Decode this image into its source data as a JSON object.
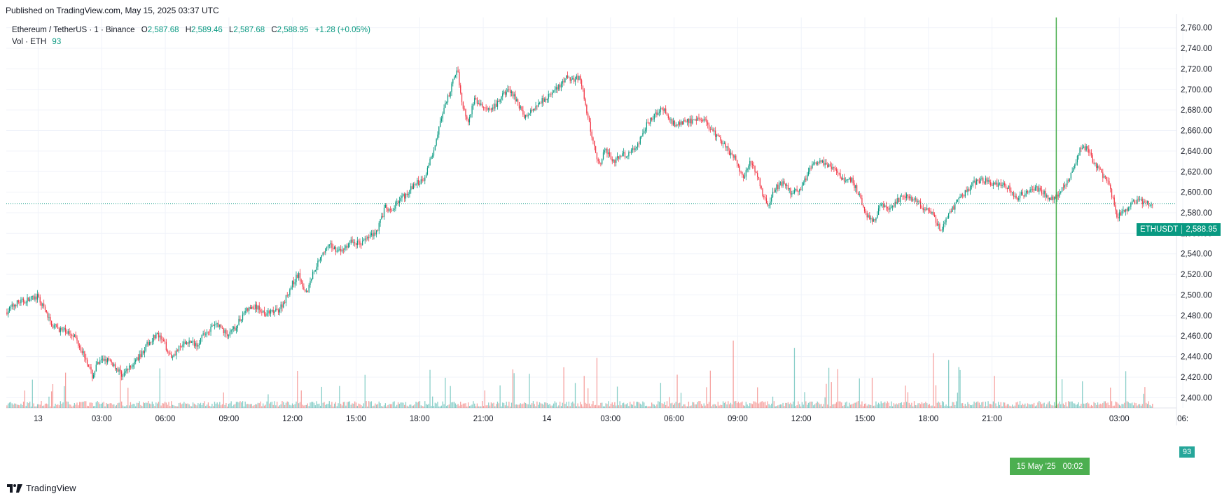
{
  "header": {
    "published": "Published on TradingView.com, May 15, 2025 03:37 UTC"
  },
  "legend": {
    "symbol": "Ethereum / TetherUS · 1 · Binance",
    "open_label": "O",
    "open": "2,587.68",
    "high_label": "H",
    "high": "2,589.46",
    "low_label": "L",
    "low": "2,587.68",
    "close_label": "C",
    "close": "2,588.95",
    "change": "+1.28 (+0.05%)",
    "volume_label": "Vol · ETH",
    "volume": "93"
  },
  "price_tag": {
    "symbol": "ETHUSDT",
    "price": "2,588.95"
  },
  "volume_tag": "93",
  "crosshair_tag": {
    "date": "15 May '25",
    "time": "00:02"
  },
  "footer": {
    "brand": "TradingView"
  },
  "colors": {
    "up": "#089981",
    "down": "#f23645",
    "vol_up": "#26a69a",
    "vol_down": "#ef5350",
    "crosshair": "#4caf50"
  },
  "chart_data": {
    "type": "candlestick",
    "symbol": "ETHUSDT",
    "ylim": [
      2390,
      2770
    ],
    "y_ticks": [
      "2,400.00",
      "2,420.00",
      "2,440.00",
      "2,460.00",
      "2,480.00",
      "2,500.00",
      "2,520.00",
      "2,540.00",
      "2,560.00",
      "2,580.00",
      "2,600.00",
      "2,620.00",
      "2,640.00",
      "2,660.00",
      "2,680.00",
      "2,700.00",
      "2,720.00",
      "2,740.00",
      "2,760.00"
    ],
    "y_tick_values": [
      2400,
      2420,
      2440,
      2460,
      2480,
      2500,
      2520,
      2540,
      2560,
      2580,
      2600,
      2620,
      2640,
      2660,
      2680,
      2700,
      2720,
      2740,
      2760
    ],
    "x_ticks": [
      "13",
      "03:00",
      "06:00",
      "09:00",
      "12:00",
      "15:00",
      "18:00",
      "21:00",
      "14",
      "03:00",
      "06:00",
      "09:00",
      "12:00",
      "15:00",
      "18:00",
      "21:00",
      "03:00",
      "06:"
    ],
    "x_tick_hours": [
      0,
      3,
      6,
      9,
      12,
      15,
      18,
      21,
      24,
      27,
      30,
      33,
      36,
      39,
      42,
      45,
      51,
      54
    ],
    "xlim_hours": [
      -1.5,
      53.7
    ],
    "crosshair_hour": 48.03,
    "last_price": 2588.95,
    "price_path": [
      [
        -1.5,
        2483
      ],
      [
        -1.0,
        2492
      ],
      [
        -0.5,
        2495
      ],
      [
        0,
        2498
      ],
      [
        0.3,
        2487
      ],
      [
        0.7,
        2470
      ],
      [
        1.2,
        2465
      ],
      [
        1.7,
        2462
      ],
      [
        2.0,
        2450
      ],
      [
        2.3,
        2438
      ],
      [
        2.6,
        2420
      ],
      [
        2.8,
        2432
      ],
      [
        3.2,
        2438
      ],
      [
        3.6,
        2432
      ],
      [
        4.0,
        2422
      ],
      [
        4.4,
        2430
      ],
      [
        4.8,
        2440
      ],
      [
        5.2,
        2452
      ],
      [
        5.6,
        2462
      ],
      [
        6.0,
        2452
      ],
      [
        6.3,
        2440
      ],
      [
        6.7,
        2448
      ],
      [
        7.1,
        2455
      ],
      [
        7.5,
        2452
      ],
      [
        8.0,
        2465
      ],
      [
        8.5,
        2472
      ],
      [
        9.0,
        2460
      ],
      [
        9.4,
        2470
      ],
      [
        9.8,
        2485
      ],
      [
        10.3,
        2488
      ],
      [
        10.8,
        2482
      ],
      [
        11.3,
        2484
      ],
      [
        11.6,
        2492
      ],
      [
        12.0,
        2510
      ],
      [
        12.3,
        2520
      ],
      [
        12.7,
        2502
      ],
      [
        13.0,
        2522
      ],
      [
        13.4,
        2540
      ],
      [
        13.8,
        2548
      ],
      [
        14.3,
        2542
      ],
      [
        14.8,
        2552
      ],
      [
        15.2,
        2550
      ],
      [
        15.6,
        2556
      ],
      [
        16.0,
        2562
      ],
      [
        16.4,
        2585
      ],
      [
        16.7,
        2580
      ],
      [
        17.0,
        2592
      ],
      [
        17.4,
        2598
      ],
      [
        17.8,
        2608
      ],
      [
        18.2,
        2612
      ],
      [
        18.6,
        2635
      ],
      [
        18.9,
        2660
      ],
      [
        19.2,
        2682
      ],
      [
        19.5,
        2700
      ],
      [
        19.8,
        2722
      ],
      [
        20.0,
        2690
      ],
      [
        20.3,
        2668
      ],
      [
        20.6,
        2690
      ],
      [
        21.0,
        2683
      ],
      [
        21.4,
        2678
      ],
      [
        21.8,
        2690
      ],
      [
        22.2,
        2700
      ],
      [
        22.6,
        2690
      ],
      [
        23.0,
        2672
      ],
      [
        23.4,
        2682
      ],
      [
        23.8,
        2690
      ],
      [
        24.2,
        2695
      ],
      [
        24.6,
        2702
      ],
      [
        25.0,
        2712
      ],
      [
        25.3,
        2710
      ],
      [
        25.6,
        2712
      ],
      [
        25.9,
        2678
      ],
      [
        26.2,
        2650
      ],
      [
        26.5,
        2625
      ],
      [
        26.8,
        2642
      ],
      [
        27.2,
        2630
      ],
      [
        27.6,
        2636
      ],
      [
        28.0,
        2638
      ],
      [
        28.4,
        2650
      ],
      [
        28.8,
        2668
      ],
      [
        29.2,
        2676
      ],
      [
        29.5,
        2682
      ],
      [
        29.8,
        2670
      ],
      [
        30.2,
        2665
      ],
      [
        30.6,
        2670
      ],
      [
        31.0,
        2668
      ],
      [
        31.4,
        2672
      ],
      [
        31.8,
        2660
      ],
      [
        32.2,
        2652
      ],
      [
        32.6,
        2640
      ],
      [
        33.0,
        2630
      ],
      [
        33.3,
        2612
      ],
      [
        33.6,
        2632
      ],
      [
        33.9,
        2620
      ],
      [
        34.2,
        2598
      ],
      [
        34.5,
        2588
      ],
      [
        34.8,
        2604
      ],
      [
        35.2,
        2610
      ],
      [
        35.6,
        2598
      ],
      [
        36.0,
        2604
      ],
      [
        36.4,
        2620
      ],
      [
        36.8,
        2632
      ],
      [
        37.2,
        2626
      ],
      [
        37.6,
        2622
      ],
      [
        38.0,
        2612
      ],
      [
        38.4,
        2612
      ],
      [
        38.8,
        2596
      ],
      [
        39.1,
        2578
      ],
      [
        39.4,
        2570
      ],
      [
        39.8,
        2588
      ],
      [
        40.2,
        2582
      ],
      [
        40.6,
        2592
      ],
      [
        41.0,
        2598
      ],
      [
        41.4,
        2592
      ],
      [
        41.8,
        2585
      ],
      [
        42.2,
        2580
      ],
      [
        42.6,
        2562
      ],
      [
        43.0,
        2578
      ],
      [
        43.4,
        2592
      ],
      [
        43.8,
        2600
      ],
      [
        44.2,
        2610
      ],
      [
        44.6,
        2612
      ],
      [
        45.0,
        2608
      ],
      [
        45.4,
        2608
      ],
      [
        45.8,
        2604
      ],
      [
        46.2,
        2594
      ],
      [
        46.6,
        2600
      ],
      [
        47.0,
        2604
      ],
      [
        47.4,
        2600
      ],
      [
        47.8,
        2594
      ],
      [
        48.2,
        2598
      ],
      [
        48.6,
        2612
      ],
      [
        48.9,
        2625
      ],
      [
        49.2,
        2642
      ],
      [
        49.5,
        2642
      ],
      [
        49.8,
        2630
      ],
      [
        50.2,
        2618
      ],
      [
        50.6,
        2605
      ],
      [
        50.9,
        2576
      ],
      [
        51.2,
        2580
      ],
      [
        51.6,
        2588
      ],
      [
        52.0,
        2592
      ],
      [
        52.4,
        2588
      ],
      [
        52.6,
        2589
      ]
    ]
  }
}
